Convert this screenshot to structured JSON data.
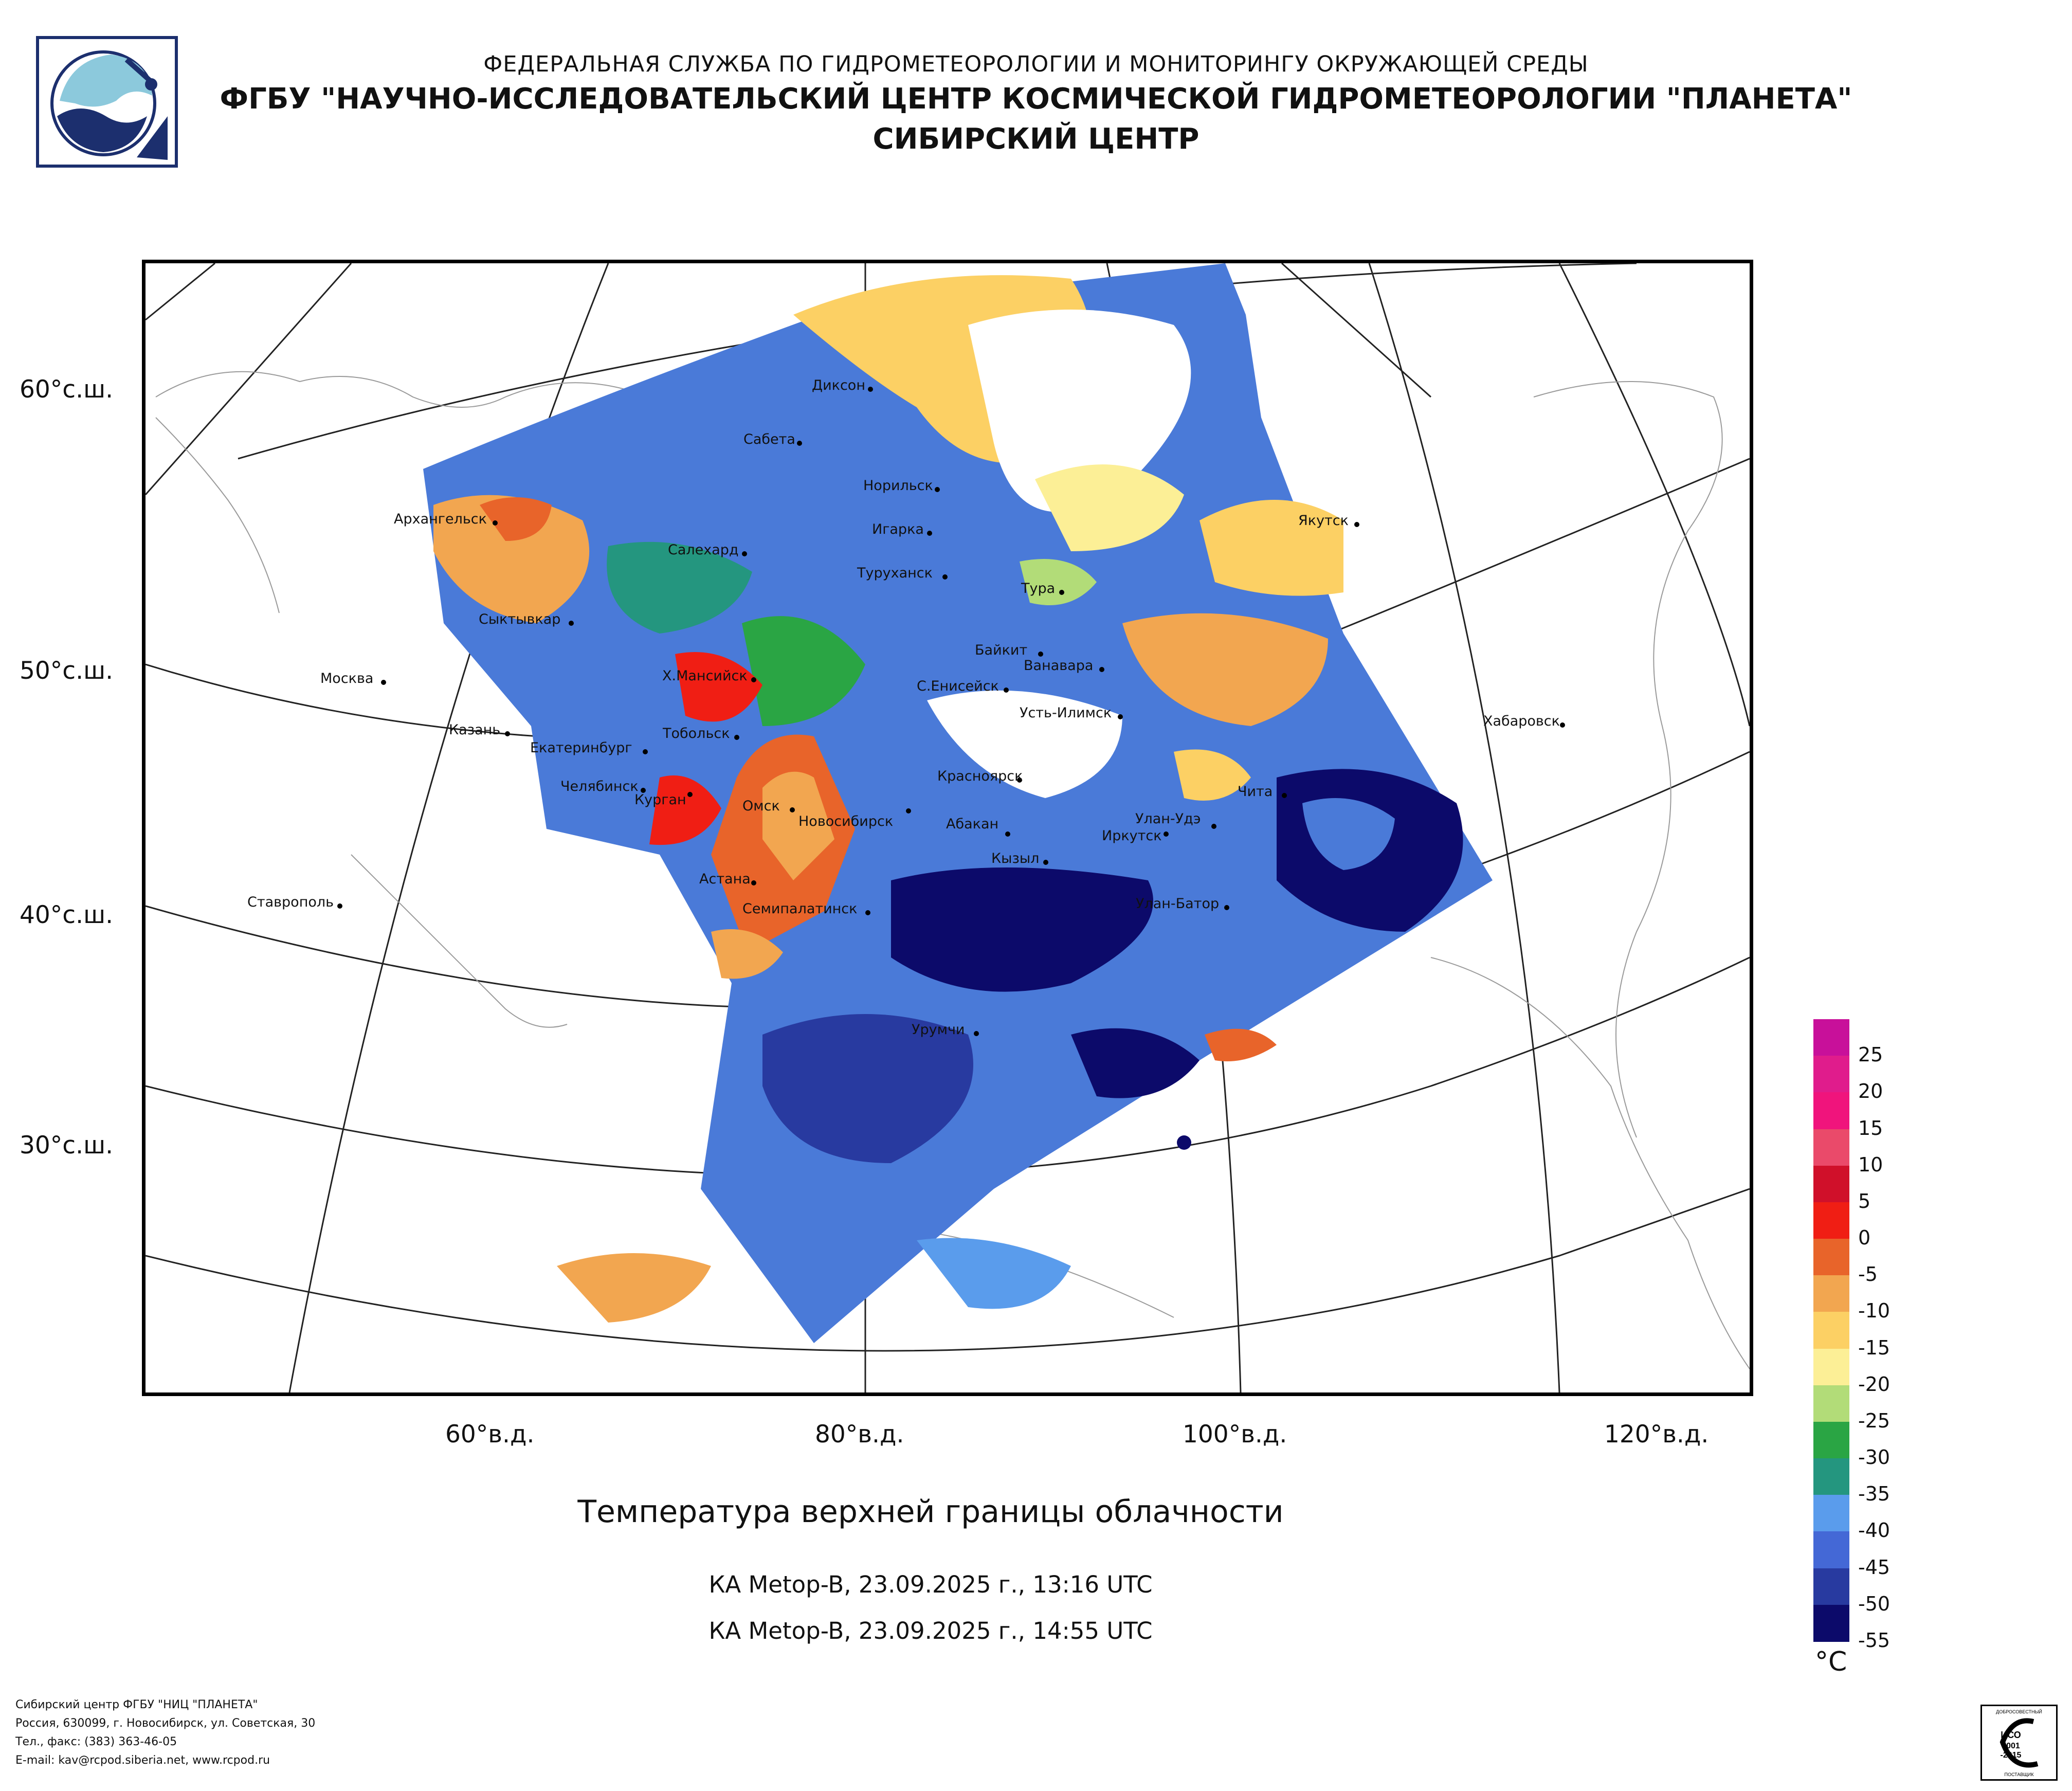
{
  "header": {
    "line1": "ФЕДЕРАЛЬНАЯ СЛУЖБА ПО ГИДРОМЕТЕОРОЛОГИИ И МОНИТОРИНГУ ОКРУЖАЮЩЕЙ СРЕДЫ",
    "line2": "ФГБУ \"НАУЧНО-ИССЛЕДОВАТЕЛЬСКИЙ ЦЕНТР КОСМИЧЕСКОЙ ГИДРОМЕТЕОРОЛОГИИ \"ПЛАНЕТА\"",
    "line3": "СИБИРСКИЙ ЦЕНТР"
  },
  "map": {
    "lat_labels": [
      "60°с.ш.",
      "50°с.ш.",
      "40°с.ш.",
      "30°с.ш."
    ],
    "lon_labels": [
      "60°в.д.",
      "80°в.д.",
      "100°в.д.",
      "120°в.д."
    ],
    "cities": [
      "Диксон",
      "Сабета",
      "Норильск",
      "Архангельск",
      "Салехард",
      "Игарка",
      "Туруханск",
      "Якутск",
      "Тура",
      "Сыктывкар",
      "Байкит",
      "Ванавара",
      "Москва",
      "Х.Мансийск",
      "С.Енисейск",
      "Усть-Илимск",
      "Хабаровск",
      "Казань",
      "Тобольск",
      "Екатеринбург",
      "Красноярск",
      "Чита",
      "Челябинск",
      "Курган",
      "Омск",
      "Новосибирск",
      "Абакан",
      "Улан-Удэ",
      "Иркутск",
      "Кызыл",
      "Астана",
      "Ставрополь",
      "Семипалатинск",
      "Улан-Батор",
      "Урумчи"
    ]
  },
  "title": "Температура верхней границы облачности",
  "passes": [
    "КА Metop-B, 23.09.2025 г., 13:16 UTC",
    "КА Metop-B, 23.09.2025 г., 14:55 UTC"
  ],
  "legend": {
    "ticks": [
      "25",
      "20",
      "15",
      "10",
      "5",
      "0",
      "-5",
      "-10",
      "-15",
      "-20",
      "-25",
      "-30",
      "-35",
      "-40",
      "-45",
      "-50",
      "-55"
    ],
    "colors": [
      "#c8109a",
      "#e01c8c",
      "#f0147c",
      "#ea4a6a",
      "#d0102a",
      "#f01e14",
      "#e8642a",
      "#f2a650",
      "#fcd064",
      "#fcef96",
      "#b2dc78",
      "#2aa544",
      "#24967f",
      "#5a9cec",
      "#4468d6",
      "#283aa0",
      "#0c0a6a"
    ],
    "unit": "°C"
  },
  "footer": {
    "lines": [
      "Сибирский центр ФГБУ \"НИЦ \"ПЛАНЕТА\"",
      "Россия, 630099, г. Новосибирск, ул. Советская, 30",
      "Тел., факс: (383) 363-46-05",
      "E-mail: kav@rcpod.siberia.net, www.rcpod.ru"
    ]
  },
  "iso": {
    "top": "ДОБРОСОВЕСТНЫЙ",
    "mid1": "ИСО",
    "mid2": "9001",
    "mid3": "-2015",
    "bottom": "ПОСТАВЩИК"
  }
}
